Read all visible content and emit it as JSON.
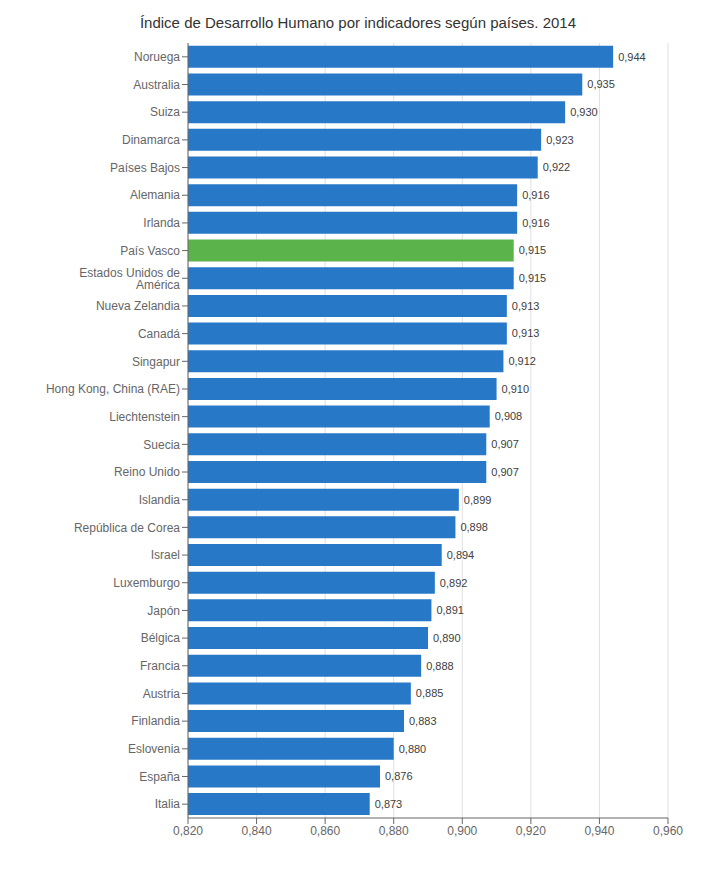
{
  "chart_data": {
    "type": "bar",
    "orientation": "horizontal",
    "title": "Índice de Desarrollo Humano  por indicadores según países. 2014",
    "categories": [
      "Noruega",
      "Australia",
      "Suiza",
      "Dinamarca",
      "Países Bajos",
      "Alemania",
      "Irlanda",
      "País Vasco",
      "Estados Unidos de América",
      "Nueva Zelandia",
      "Canadá",
      "Singapur",
      "Hong Kong, China (RAE)",
      "Liechtenstein",
      "Suecia",
      "Reino Unido",
      "Islandia",
      "República de Corea",
      "Israel",
      "Luxemburgo",
      "Japón",
      "Bélgica",
      "Francia",
      "Austria",
      "Finlandia",
      "Eslovenia",
      "España",
      "Italia"
    ],
    "values": [
      0.944,
      0.935,
      0.93,
      0.923,
      0.922,
      0.916,
      0.916,
      0.915,
      0.915,
      0.913,
      0.913,
      0.912,
      0.91,
      0.908,
      0.907,
      0.907,
      0.899,
      0.898,
      0.894,
      0.892,
      0.891,
      0.89,
      0.888,
      0.885,
      0.883,
      0.88,
      0.876,
      0.873
    ],
    "value_labels": [
      "0,944",
      "0,935",
      "0,930",
      "0,923",
      "0,922",
      "0,916",
      "0,916",
      "0,915",
      "0,915",
      "0,913",
      "0,913",
      "0,912",
      "0,910",
      "0,908",
      "0,907",
      "0,907",
      "0,899",
      "0,898",
      "0,894",
      "0,892",
      "0,891",
      "0,890",
      "0,888",
      "0,885",
      "0,883",
      "0,880",
      "0,876",
      "0,873"
    ],
    "data_labels": true,
    "colors": [
      "#2878c8",
      "#2878c8",
      "#2878c8",
      "#2878c8",
      "#2878c8",
      "#2878c8",
      "#2878c8",
      "#5ab44b",
      "#2878c8",
      "#2878c8",
      "#2878c8",
      "#2878c8",
      "#2878c8",
      "#2878c8",
      "#2878c8",
      "#2878c8",
      "#2878c8",
      "#2878c8",
      "#2878c8",
      "#2878c8",
      "#2878c8",
      "#2878c8",
      "#2878c8",
      "#2878c8",
      "#2878c8",
      "#2878c8",
      "#2878c8",
      "#2878c8"
    ],
    "xlim": [
      0.82,
      0.96
    ],
    "xticks": [
      {
        "value": 0.82,
        "label": "0,820"
      },
      {
        "value": 0.84,
        "label": "0,840"
      },
      {
        "value": 0.86,
        "label": "0,860"
      },
      {
        "value": 0.88,
        "label": "0,880"
      },
      {
        "value": 0.9,
        "label": "0,900"
      },
      {
        "value": 0.92,
        "label": "0,920"
      },
      {
        "value": 0.94,
        "label": "0,940"
      },
      {
        "value": 0.96,
        "label": "0,960"
      }
    ],
    "grid": true
  }
}
